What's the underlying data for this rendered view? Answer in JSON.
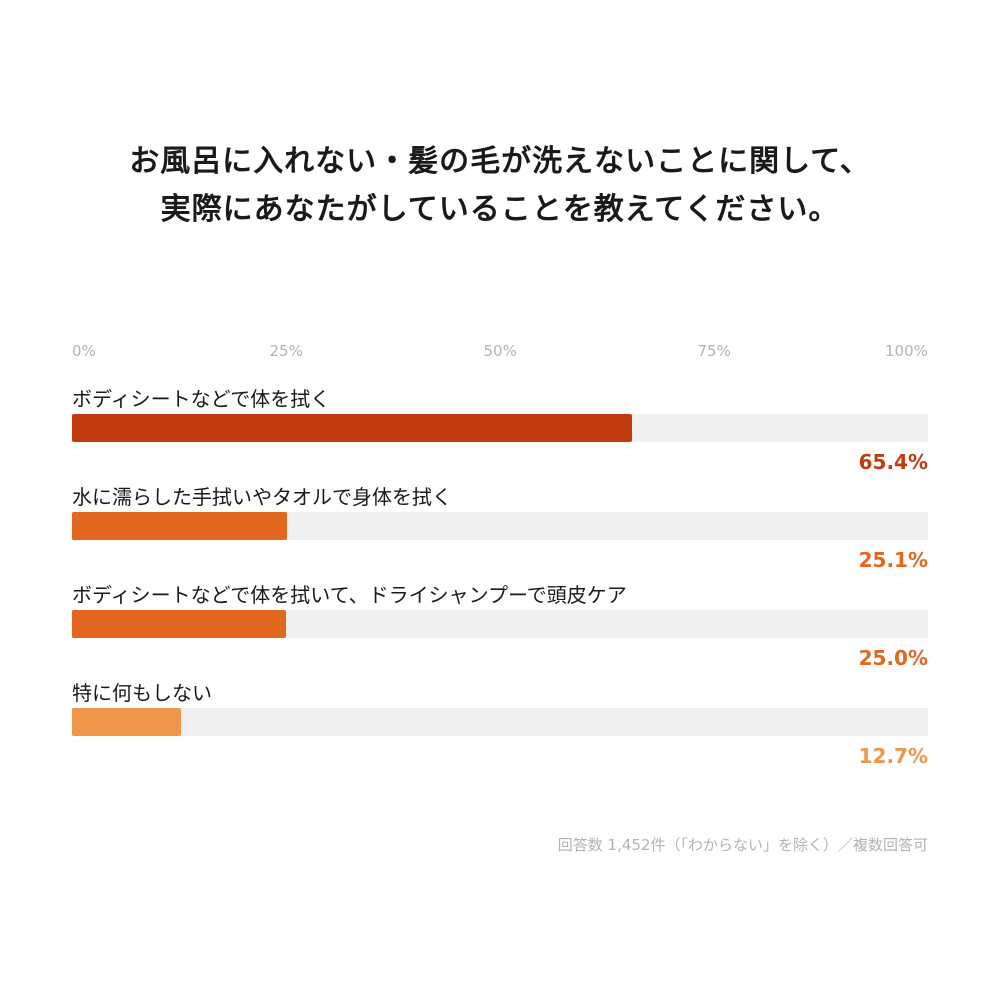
{
  "chart_data": {
    "type": "bar",
    "orientation": "horizontal",
    "title_lines": [
      "お風呂に入れない・髪の毛が洗えないことに関して、",
      "実際にあなたがしていることを教えてください。"
    ],
    "x_ticks": [
      "0%",
      "25%",
      "50%",
      "75%",
      "100%"
    ],
    "xlim": [
      0,
      100
    ],
    "categories": [
      "ボディシートなどで体を拭く",
      "水に濡らした手拭いやタオルで身体を拭く",
      "ボディシートなどで体を拭いて、ドライシャンプーで頭皮ケア",
      "特に何もしない"
    ],
    "values": [
      65.4,
      25.1,
      25.0,
      12.7
    ],
    "value_labels": [
      "65.4%",
      "25.1%",
      "25.0%",
      "12.7%"
    ],
    "colors": [
      "#c13b0e",
      "#e2671f",
      "#e2671f",
      "#f0964a"
    ],
    "track_color": "#efefef",
    "grid": false,
    "footnote": "回答数 1,452件（「わからない」を除く）／複数回答可"
  }
}
